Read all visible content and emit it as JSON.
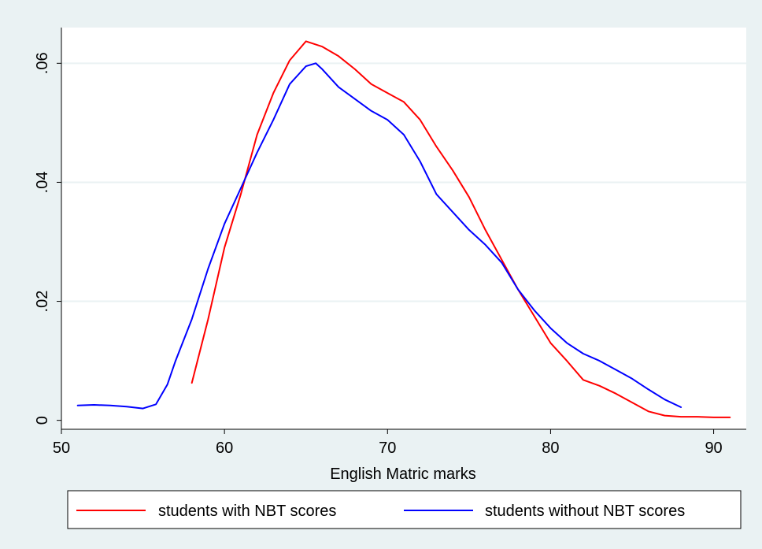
{
  "chart_data": {
    "type": "line",
    "title": "",
    "xlabel": "English Matric marks",
    "ylabel": "",
    "xlim": [
      50,
      92
    ],
    "ylim": [
      -0.0015,
      0.066
    ],
    "x_ticks": [
      50,
      60,
      70,
      80,
      90
    ],
    "x_tick_labels": [
      "50",
      "60",
      "70",
      "80",
      "90"
    ],
    "y_ticks": [
      0,
      0.02,
      0.04,
      0.06
    ],
    "y_tick_labels": [
      "0",
      ".02",
      ".04",
      ".06"
    ],
    "grid": "horizontal",
    "legend_position": "bottom",
    "series": [
      {
        "name": "students with NBT scores",
        "color": "#ff0000",
        "points": [
          [
            58,
            0.0063
          ],
          [
            59,
            0.017
          ],
          [
            60,
            0.029
          ],
          [
            61,
            0.038
          ],
          [
            62,
            0.048
          ],
          [
            63,
            0.055
          ],
          [
            64,
            0.0605
          ],
          [
            65,
            0.0637
          ],
          [
            66,
            0.0628
          ],
          [
            67,
            0.0612
          ],
          [
            68,
            0.059
          ],
          [
            69,
            0.0565
          ],
          [
            70,
            0.055
          ],
          [
            71,
            0.0535
          ],
          [
            72,
            0.0505
          ],
          [
            73,
            0.046
          ],
          [
            74,
            0.042
          ],
          [
            75,
            0.0375
          ],
          [
            76,
            0.032
          ],
          [
            77,
            0.027
          ],
          [
            78,
            0.022
          ],
          [
            79,
            0.0175
          ],
          [
            80,
            0.013
          ],
          [
            81,
            0.01
          ],
          [
            82,
            0.0068
          ],
          [
            83,
            0.0058
          ],
          [
            84,
            0.0045
          ],
          [
            85,
            0.003
          ],
          [
            86,
            0.0015
          ],
          [
            87,
            0.0008
          ],
          [
            88,
            0.0006
          ],
          [
            89,
            0.0006
          ],
          [
            90,
            0.0005
          ],
          [
            91,
            0.0005
          ]
        ]
      },
      {
        "name": "students without NBT scores",
        "color": "#0000ff",
        "points": [
          [
            51,
            0.0025
          ],
          [
            52,
            0.0026
          ],
          [
            53,
            0.0025
          ],
          [
            54,
            0.0023
          ],
          [
            55,
            0.002
          ],
          [
            55.8,
            0.0027
          ],
          [
            56.5,
            0.006
          ],
          [
            57,
            0.01
          ],
          [
            58,
            0.017
          ],
          [
            59,
            0.0255
          ],
          [
            60,
            0.033
          ],
          [
            61,
            0.039
          ],
          [
            62,
            0.045
          ],
          [
            63,
            0.0505
          ],
          [
            64,
            0.0565
          ],
          [
            65,
            0.0595
          ],
          [
            65.6,
            0.06
          ],
          [
            66,
            0.059
          ],
          [
            67,
            0.056
          ],
          [
            68,
            0.054
          ],
          [
            69,
            0.052
          ],
          [
            70,
            0.0505
          ],
          [
            71,
            0.048
          ],
          [
            72,
            0.0435
          ],
          [
            73,
            0.038
          ],
          [
            74,
            0.035
          ],
          [
            75,
            0.032
          ],
          [
            76,
            0.0295
          ],
          [
            77,
            0.0265
          ],
          [
            78,
            0.022
          ],
          [
            79,
            0.0185
          ],
          [
            80,
            0.0155
          ],
          [
            81,
            0.013
          ],
          [
            82,
            0.0112
          ],
          [
            83,
            0.01
          ],
          [
            84,
            0.0085
          ],
          [
            85,
            0.007
          ],
          [
            86,
            0.0052
          ],
          [
            87,
            0.0035
          ],
          [
            88,
            0.0022
          ]
        ]
      }
    ]
  }
}
